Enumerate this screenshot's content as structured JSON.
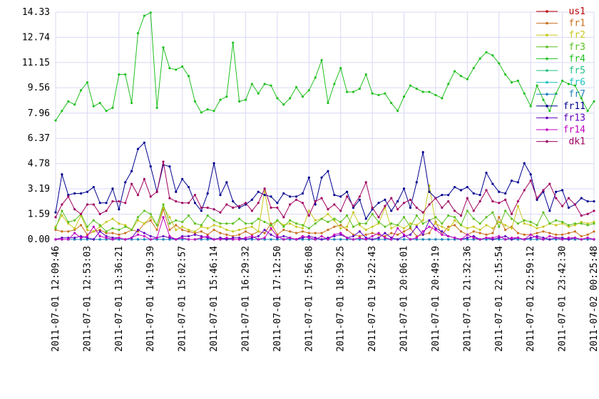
{
  "chart_data": {
    "type": "line",
    "categories": [
      "2011-07-01 12:09:46",
      null,
      null,
      null,
      null,
      "2011-07-01 12:53:03",
      null,
      null,
      null,
      null,
      "2011-07-01 13:36:21",
      null,
      null,
      null,
      null,
      "2011-07-01 14:19:39",
      null,
      null,
      null,
      null,
      "2011-07-01 15:02:57",
      null,
      null,
      null,
      null,
      "2011-07-01 15:46:14",
      null,
      null,
      null,
      null,
      "2011-07-01 16:29:32",
      null,
      null,
      null,
      null,
      "2011-07-01 17:12:50",
      null,
      null,
      null,
      null,
      "2011-07-01 17:56:08",
      null,
      null,
      null,
      null,
      "2011-07-01 18:39:25",
      null,
      null,
      null,
      null,
      "2011-07-01 19:22:43",
      null,
      null,
      null,
      null,
      "2011-07-01 20:06:01",
      null,
      null,
      null,
      null,
      "2011-07-01 20:49:19",
      null,
      null,
      null,
      null,
      "2011-07-01 21:32:36",
      null,
      null,
      null,
      null,
      "2011-07-01 22:15:54",
      null,
      null,
      null,
      null,
      "2011-07-01 22:59:12",
      null,
      null,
      null,
      null,
      "2011-07-01 23:42:30",
      null,
      null,
      null,
      null,
      "2011-07-02 00:25:48"
    ],
    "ylim": [
      0,
      14.33
    ],
    "yticks": [
      {
        "value": 0,
        "label": "0.00"
      },
      1.59,
      3.19,
      4.78,
      6.37,
      7.96,
      9.56,
      11.15,
      12.74,
      14.33
    ],
    "grid": true,
    "legend": "right",
    "series": [
      {
        "name": "us1",
        "color": "#c00000",
        "values": [
          0,
          0,
          0,
          0,
          0,
          0,
          0,
          0,
          0,
          0,
          0,
          0,
          0,
          0,
          0,
          0,
          0,
          0,
          0,
          0,
          0,
          0,
          0,
          0,
          0,
          0,
          0,
          0,
          0,
          0,
          0,
          0,
          0,
          0,
          0,
          0,
          0,
          0,
          0,
          0,
          0,
          0,
          0,
          0,
          0,
          0,
          0,
          0,
          0,
          0,
          0,
          0,
          0,
          0,
          0,
          0,
          0,
          0,
          0,
          0,
          0,
          0,
          0,
          0,
          0,
          0,
          0,
          0,
          0,
          0,
          0,
          0,
          0,
          0,
          0,
          0,
          0,
          0,
          0,
          0,
          0,
          0,
          0,
          0,
          0,
          0
        ]
      },
      {
        "name": "fr1",
        "color": "#c87020",
        "values": [
          0.6,
          0.5,
          0.5,
          0.6,
          0.9,
          0.3,
          0.5,
          0.6,
          0.4,
          0.4,
          0.3,
          0.4,
          0.6,
          0.5,
          1.0,
          1.2,
          0.6,
          1.9,
          0.6,
          0.9,
          0.6,
          0.5,
          0.4,
          0.5,
          0.3,
          0.6,
          0.4,
          0.3,
          0.2,
          0.3,
          0.5,
          0.3,
          0.5,
          0.4,
          1.0,
          0.3,
          0.6,
          0.5,
          0.4,
          0.5,
          0.4,
          0.4,
          0.4,
          0.6,
          0.8,
          0.9,
          0.6,
          0.3,
          0.2,
          0.3,
          0.4,
          0.3,
          0.2,
          0.4,
          0.3,
          0.5,
          0.7,
          0.2,
          0.3,
          0.4,
          1.1,
          0.3,
          0.8,
          0.9,
          0.5,
          0.3,
          0.5,
          0.4,
          0.3,
          0.4,
          1.4,
          0.6,
          0.8,
          0.4,
          0.3,
          0.3,
          0.4,
          0.5,
          0.4,
          0.3,
          0.3,
          0.4,
          0.5,
          0.2,
          0.3,
          0.5
        ]
      },
      {
        "name": "fr2",
        "color": "#c8c820",
        "values": [
          0.8,
          1.5,
          1.0,
          0.7,
          1.5,
          0.6,
          0.5,
          0.8,
          1.1,
          1.3,
          1.0,
          0.9,
          0.6,
          1.2,
          1.0,
          1.4,
          0.9,
          2.0,
          1.4,
          0.6,
          0.8,
          0.6,
          0.5,
          0.8,
          0.7,
          0.9,
          0.8,
          0.6,
          0.5,
          0.6,
          0.7,
          0.8,
          0.5,
          3.1,
          0.6,
          1.2,
          0.9,
          1.0,
          0.8,
          0.7,
          1.8,
          1.2,
          1.3,
          1.6,
          1.2,
          0.7,
          0.8,
          1.7,
          0.9,
          0.6,
          0.8,
          1.0,
          2.0,
          0.7,
          0.9,
          0.7,
          1.0,
          0.9,
          1.2,
          3.4,
          1.0,
          0.8,
          0.6,
          1.2,
          0.9,
          0.7,
          0.8,
          0.6,
          0.9,
          0.7,
          1.1,
          0.9,
          0.7,
          2.1,
          1.0,
          0.9,
          0.7,
          0.8,
          1.0,
          0.9,
          1.0,
          0.8,
          0.9,
          1.1,
          1.0,
          1.1
        ]
      },
      {
        "name": "fr3",
        "color": "#5cc020",
        "values": [
          0.7,
          1.8,
          1.1,
          1.2,
          1.6,
          0.8,
          1.2,
          0.9,
          0.5,
          0.7,
          0.6,
          0.8,
          0.6,
          1.4,
          1.8,
          1.6,
          0.9,
          2.2,
          1.0,
          1.2,
          1.1,
          1.5,
          1.0,
          0.9,
          1.5,
          1.2,
          1.0,
          1.0,
          1.0,
          1.3,
          1.0,
          1.0,
          1.3,
          1.1,
          0.9,
          1.2,
          0.8,
          1.2,
          1.0,
          0.9,
          0.7,
          1.0,
          1.3,
          1.1,
          1.3,
          1.1,
          1.5,
          0.8,
          1.0,
          1.0,
          1.6,
          1.1,
          0.8,
          1.0,
          0.9,
          1.4,
          0.8,
          1.5,
          1.0,
          1.2,
          1.4,
          1.0,
          1.5,
          1.4,
          0.9,
          1.8,
          1.3,
          1.0,
          1.4,
          1.7,
          0.8,
          1.8,
          1.3,
          1.0,
          1.2,
          1.1,
          0.9,
          1.7,
          1.0,
          1.2,
          1.1,
          0.9,
          1.0,
          1.0,
          0.9,
          1.0
        ]
      },
      {
        "name": "fr4",
        "color": "#20c020",
        "values": [
          7.5,
          8.1,
          8.7,
          8.5,
          9.4,
          9.9,
          8.4,
          8.6,
          8.1,
          8.3,
          10.4,
          10.4,
          8.6,
          13.0,
          14.1,
          14.3,
          8.3,
          12.1,
          10.8,
          10.7,
          10.9,
          10.3,
          8.7,
          8.0,
          8.2,
          8.1,
          8.8,
          9.0,
          12.4,
          8.7,
          8.8,
          9.8,
          9.2,
          9.8,
          9.7,
          8.9,
          8.5,
          8.9,
          9.6,
          9.0,
          9.4,
          10.2,
          11.3,
          8.6,
          9.8,
          10.8,
          9.3,
          9.3,
          9.5,
          10.4,
          9.2,
          9.1,
          9.2,
          8.6,
          8.1,
          9.0,
          9.7,
          9.5,
          9.3,
          9.3,
          9.1,
          8.9,
          9.8,
          10.6,
          10.3,
          10.1,
          10.8,
          11.4,
          11.8,
          11.6,
          11.1,
          10.4,
          9.9,
          10.0,
          9.2,
          8.4,
          9.7,
          8.8,
          8.1,
          9.2,
          10.0,
          9.8,
          9.7,
          8.9,
          8.1,
          8.7
        ]
      },
      {
        "name": "fr5",
        "color": "#20c080",
        "values": [
          0,
          0,
          0,
          0,
          0,
          0,
          0,
          0,
          0,
          0,
          0,
          0,
          0,
          0,
          0,
          0,
          0,
          0,
          0,
          0,
          0,
          0,
          0,
          0,
          0,
          0,
          0,
          0,
          0,
          0,
          0,
          0,
          0,
          0,
          0,
          0,
          0,
          0,
          0,
          0,
          0,
          0,
          0,
          0,
          0,
          0,
          0,
          0,
          0,
          0,
          0,
          0,
          0,
          0,
          0,
          0,
          0,
          0,
          0,
          0,
          0,
          0,
          0,
          0,
          0,
          0,
          0,
          0,
          0,
          0,
          0,
          0,
          0,
          0,
          0,
          0,
          0,
          0,
          0,
          0,
          0,
          0,
          0,
          0,
          0,
          0
        ]
      },
      {
        "name": "fr6",
        "color": "#20c0c0",
        "values": [
          0,
          0,
          0,
          0,
          0,
          0,
          0,
          0,
          0,
          0,
          0,
          0,
          0,
          0,
          0,
          0,
          0,
          0,
          0,
          0,
          0,
          0,
          0,
          0,
          0,
          0,
          0,
          0,
          0,
          0,
          0,
          0,
          0,
          0,
          0,
          0,
          0,
          0,
          0,
          0,
          0,
          0,
          0,
          0,
          0,
          0,
          0,
          0,
          0,
          0,
          0,
          0,
          0,
          0,
          0,
          0,
          0,
          0,
          0,
          0,
          0,
          0,
          0,
          0,
          0,
          0,
          0,
          0,
          0,
          0,
          0,
          0,
          0,
          0,
          0,
          0,
          0,
          0,
          0,
          0,
          0,
          0,
          0,
          0,
          0,
          0
        ]
      },
      {
        "name": "fr7",
        "color": "#2080c0",
        "values": [
          0,
          0,
          0,
          0,
          0,
          0,
          0,
          0,
          0,
          0,
          0,
          0,
          0,
          0,
          0,
          0,
          0,
          0,
          0,
          0,
          0,
          0,
          0,
          0,
          0,
          0,
          0,
          0,
          0,
          0,
          0,
          0,
          0,
          0,
          0,
          0,
          0,
          0,
          0,
          0,
          0,
          0,
          0,
          0,
          0,
          0,
          0,
          0,
          0,
          0,
          0,
          0,
          0,
          0,
          0,
          0,
          0,
          0,
          0,
          0,
          0,
          0,
          0,
          0,
          0,
          0,
          0,
          0,
          0,
          0,
          0,
          0,
          0,
          0,
          0,
          0,
          0,
          0,
          0,
          0,
          0,
          0,
          0,
          0,
          0,
          0
        ]
      },
      {
        "name": "fr11",
        "color": "#000090",
        "values": [
          1.7,
          4.1,
          2.8,
          2.9,
          2.9,
          3.0,
          3.3,
          2.3,
          2.3,
          3.2,
          1.9,
          3.6,
          4.3,
          5.7,
          6.1,
          4.6,
          3.0,
          4.7,
          4.6,
          3.0,
          3.8,
          3.3,
          2.3,
          1.8,
          2.9,
          4.8,
          2.8,
          3.6,
          2.4,
          2.0,
          2.2,
          2.5,
          3.0,
          2.8,
          2.7,
          2.3,
          2.9,
          2.7,
          2.7,
          2.9,
          3.9,
          2.2,
          3.9,
          4.3,
          2.8,
          2.7,
          3.0,
          2.0,
          2.5,
          1.3,
          1.9,
          2.3,
          2.5,
          1.8,
          2.4,
          3.2,
          2.0,
          3.6,
          5.5,
          3.0,
          2.6,
          2.8,
          2.8,
          3.3,
          3.1,
          3.3,
          2.9,
          2.8,
          4.2,
          3.5,
          3.0,
          2.9,
          3.7,
          3.6,
          4.8,
          4.1,
          2.5,
          3.0,
          1.8,
          3.0,
          3.1,
          2.0,
          2.2,
          2.6,
          2.4,
          2.4
        ]
      },
      {
        "name": "fr13",
        "color": "#6000c0",
        "values": [
          0.0,
          0.1,
          0.1,
          0.1,
          0.2,
          0.1,
          0.0,
          0.5,
          0.2,
          0.1,
          0.1,
          0.0,
          0.1,
          0.6,
          0.4,
          0.2,
          0.1,
          0.2,
          0.1,
          0.0,
          0.2,
          0.2,
          0.3,
          0.2,
          0.1,
          0.0,
          0.1,
          0.0,
          0.1,
          0.1,
          0.0,
          0.1,
          0.2,
          0.6,
          0.3,
          0.1,
          0.2,
          0.1,
          0.0,
          0.1,
          0.2,
          0.1,
          0.0,
          0.1,
          0.2,
          0.3,
          0.1,
          0.2,
          0.5,
          0.1,
          0.0,
          0.1,
          0.4,
          0.1,
          0.0,
          0.2,
          0.3,
          0.8,
          0.3,
          1.2,
          0.7,
          0.5,
          0.2,
          0.1,
          0.0,
          0.1,
          0.2,
          0.0,
          0.1,
          0.0,
          0.1,
          0.2,
          0.0,
          0.1,
          0.0,
          0.1,
          0.2,
          0.1,
          0.0,
          0.1,
          0.1,
          0.0,
          0.1,
          0.0,
          0.1,
          0.0
        ]
      },
      {
        "name": "fr14",
        "color": "#c000c0",
        "values": [
          0.0,
          0.0,
          0.0,
          0.4,
          0.1,
          0.2,
          0.8,
          0.2,
          0.1,
          0.0,
          0.1,
          0.0,
          0.1,
          0.3,
          0.2,
          0.0,
          0.1,
          1.4,
          0.2,
          0.0,
          0.1,
          0.0,
          0.0,
          0.1,
          0.2,
          0.0,
          0.0,
          0.1,
          0.0,
          0.0,
          0.1,
          0.2,
          0.0,
          0.1,
          0.7,
          0.2,
          0.0,
          0.1,
          0.0,
          0.2,
          0.1,
          0.0,
          0.2,
          0.0,
          0.3,
          0.4,
          0.1,
          0.0,
          0.1,
          0.0,
          0.2,
          0.4,
          0.1,
          0.0,
          0.7,
          0.3,
          0.0,
          0.1,
          0.5,
          0.8,
          0.6,
          0.3,
          0.2,
          0.1,
          0.0,
          0.3,
          0.1,
          0.0,
          0.1,
          0.1,
          0.2,
          0.0,
          0.1,
          0.1,
          0.0,
          0.3,
          0.1,
          0.0,
          0.2,
          0.1,
          0.0,
          0.1,
          0.1,
          0.0,
          0.1,
          0.0
        ]
      },
      {
        "name": "dk1",
        "color": "#a00060",
        "values": [
          1.4,
          2.2,
          2.7,
          1.9,
          1.6,
          2.2,
          2.2,
          1.6,
          1.8,
          2.4,
          2.4,
          2.3,
          3.5,
          2.8,
          3.8,
          2.7,
          3.0,
          4.9,
          2.6,
          2.4,
          2.3,
          2.3,
          2.8,
          2.0,
          2.0,
          1.9,
          1.7,
          2.2,
          2.0,
          2.1,
          2.3,
          1.8,
          2.3,
          3.2,
          2.0,
          2.0,
          1.4,
          2.2,
          2.5,
          2.3,
          1.5,
          2.4,
          2.6,
          1.9,
          2.2,
          1.8,
          2.7,
          2.1,
          2.7,
          3.6,
          2.0,
          1.4,
          2.1,
          2.6,
          1.9,
          2.3,
          2.5,
          2.0,
          1.7,
          2.2,
          2.6,
          2.0,
          2.4,
          1.8,
          1.5,
          2.6,
          1.8,
          2.4,
          3.1,
          2.4,
          2.3,
          2.5,
          1.6,
          2.4,
          3.1,
          3.7,
          2.6,
          3.1,
          3.5,
          2.6,
          2.1,
          2.6,
          2.2,
          1.5,
          1.6,
          1.8
        ]
      }
    ]
  }
}
